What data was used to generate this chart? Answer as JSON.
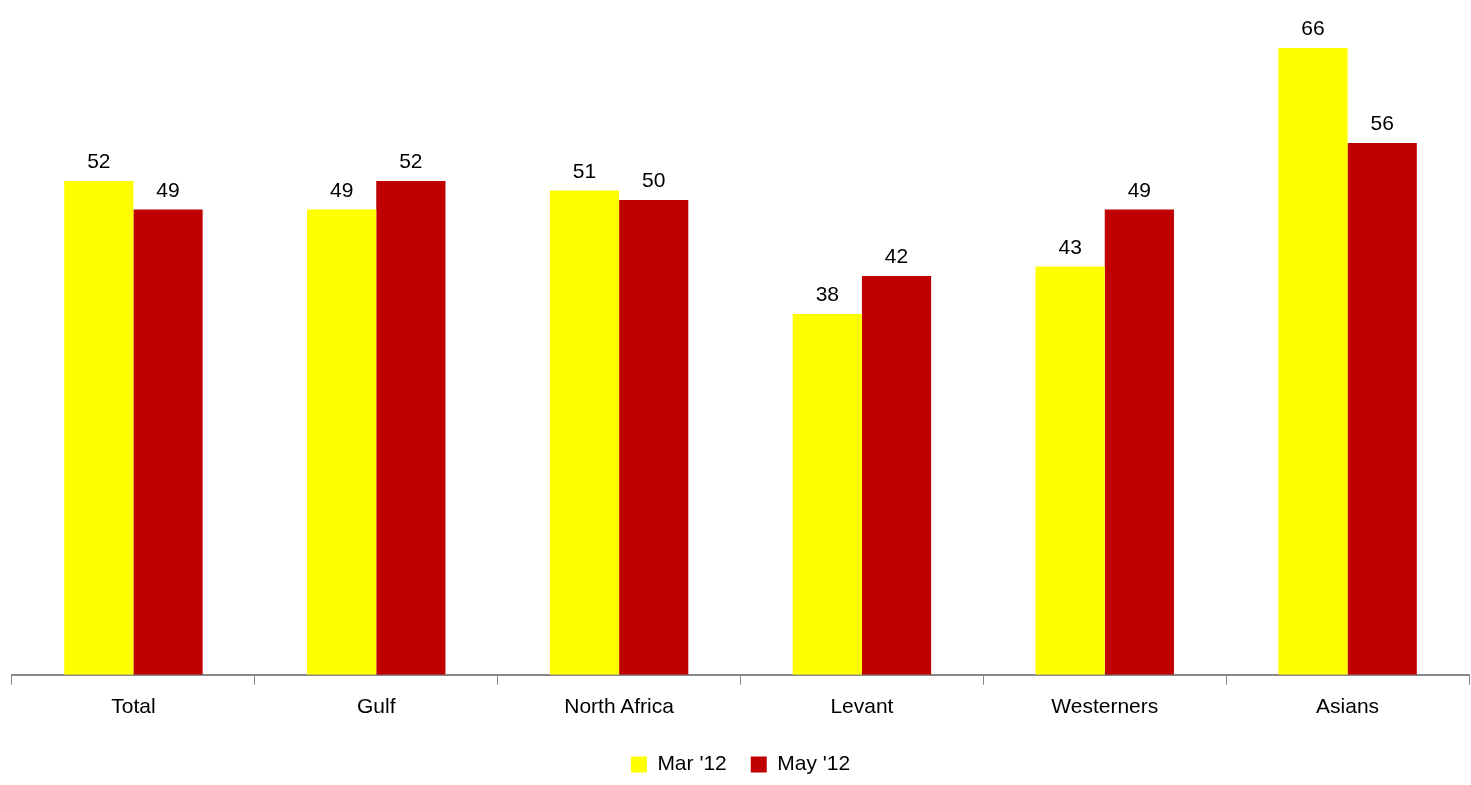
{
  "chart_data": {
    "type": "bar",
    "categories": [
      "Total",
      "Gulf",
      "North Africa",
      "Levant",
      "Westerners",
      "Asians"
    ],
    "series": [
      {
        "name": "Mar '12",
        "color": "#ffff00",
        "values": [
          52,
          49,
          51,
          38,
          43,
          66
        ]
      },
      {
        "name": "May '12",
        "color": "#c00000",
        "values": [
          49,
          52,
          50,
          42,
          49,
          56
        ]
      }
    ],
    "data_labels": true,
    "legend": "bottom",
    "grid": false
  }
}
